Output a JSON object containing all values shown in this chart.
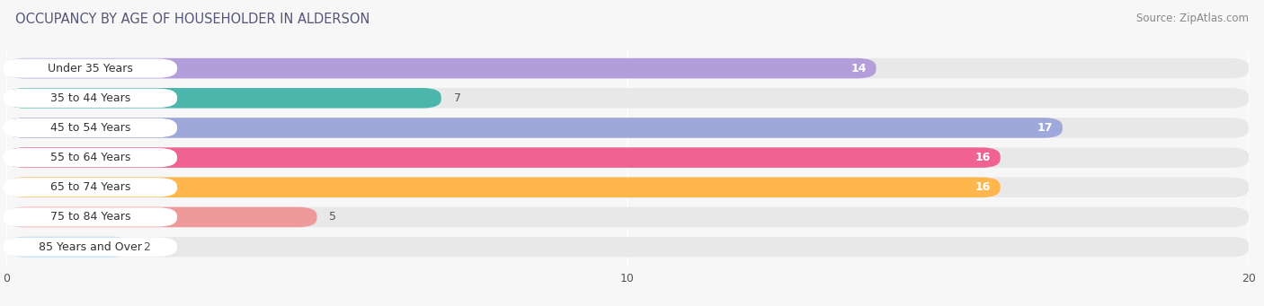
{
  "title": "OCCUPANCY BY AGE OF HOUSEHOLDER IN ALDERSON",
  "source": "Source: ZipAtlas.com",
  "categories": [
    "Under 35 Years",
    "35 to 44 Years",
    "45 to 54 Years",
    "55 to 64 Years",
    "65 to 74 Years",
    "75 to 84 Years",
    "85 Years and Over"
  ],
  "values": [
    14,
    7,
    17,
    16,
    16,
    5,
    2
  ],
  "bar_colors": [
    "#b39ddb",
    "#4db6ac",
    "#9fa8da",
    "#f06292",
    "#ffb74d",
    "#ef9a9a",
    "#90caf9"
  ],
  "xlim": [
    0,
    20
  ],
  "xticks": [
    0,
    10,
    20
  ],
  "title_fontsize": 10.5,
  "source_fontsize": 8.5,
  "label_fontsize": 9,
  "value_fontsize": 9,
  "background_color": "#f7f7f7",
  "bar_background_color": "#e8e8e8",
  "bar_height": 0.68,
  "bar_gap": 0.32
}
